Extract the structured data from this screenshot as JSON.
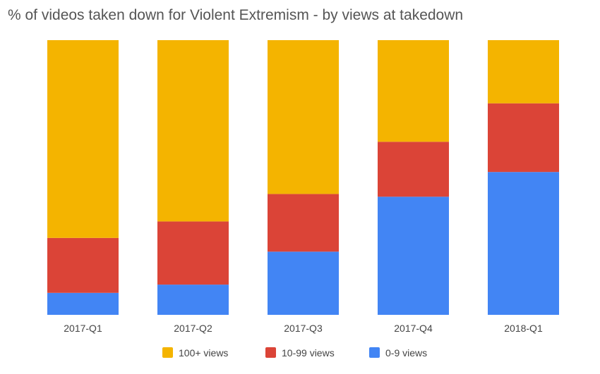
{
  "chart_data": {
    "type": "bar",
    "stacked": true,
    "percent_stacked": true,
    "title": "% of videos taken down for Violent Extremism - by views at takedown",
    "xlabel": "",
    "ylabel": "",
    "ylim": [
      0,
      100
    ],
    "grid": false,
    "legend_position": "bottom",
    "categories": [
      "2017-Q1",
      "2017-Q2",
      "2017-Q3",
      "2017-Q4",
      "2018-Q1"
    ],
    "series": [
      {
        "name": "0-9 views",
        "color": "#4285F4",
        "values": [
          8,
          11,
          23,
          43,
          52
        ]
      },
      {
        "name": "10-99 views",
        "color": "#DB4437",
        "values": [
          20,
          23,
          21,
          20,
          25
        ]
      },
      {
        "name": "100+ views",
        "color": "#F4B400",
        "values": [
          72,
          66,
          56,
          37,
          23
        ]
      }
    ],
    "legend_order": [
      "100+ views",
      "10-99 views",
      "0-9 views"
    ]
  }
}
